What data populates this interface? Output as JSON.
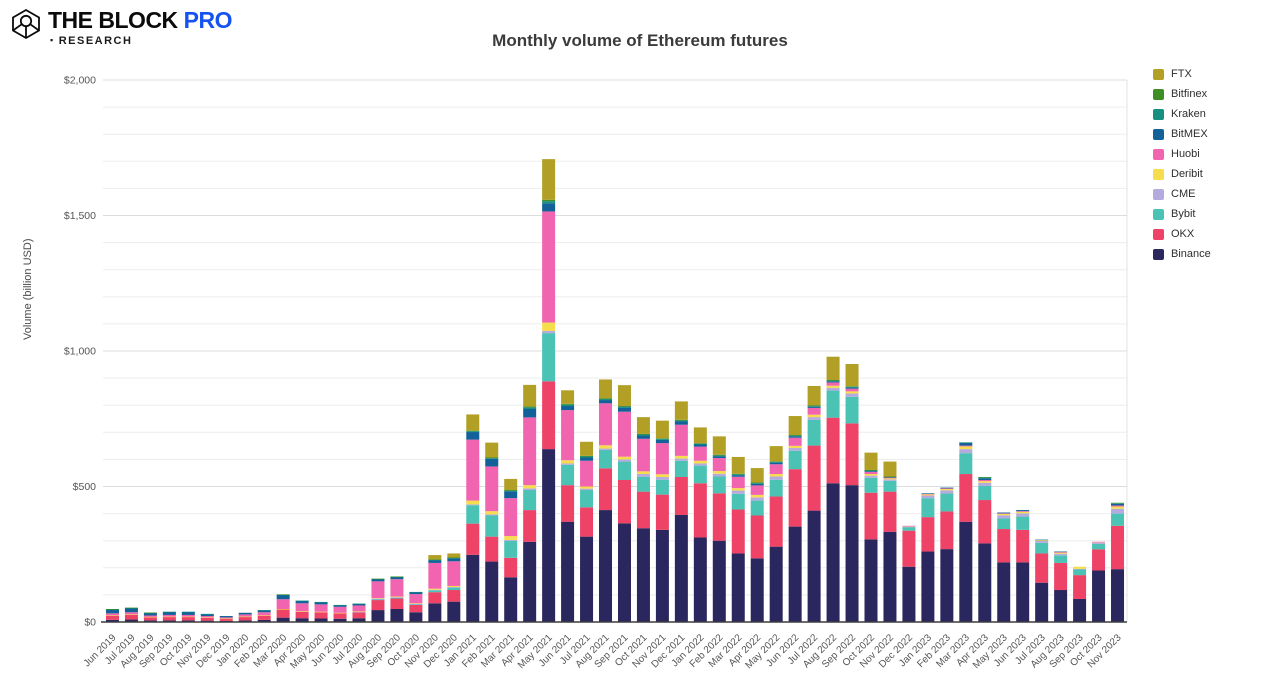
{
  "brand": {
    "name_part1": "THE BLOCK",
    "name_part2": "PRO",
    "research_bullet": "▪",
    "research": "RESEARCH"
  },
  "chart_data": {
    "type": "bar",
    "variant": "stacked",
    "title": "Monthly volume of Ethereum futures",
    "ylabel": "Volume (billion USD)",
    "ylim": [
      0,
      2000
    ],
    "grid_step": 100,
    "yticks": [
      {
        "value": 0,
        "label": "$0"
      },
      {
        "value": 500,
        "label": "$500"
      },
      {
        "value": 1000,
        "label": "$1,000"
      },
      {
        "value": 1500,
        "label": "$1,500"
      },
      {
        "value": 2000,
        "label": "$2,000"
      }
    ],
    "legend_position": "right",
    "legend_order_top_to_bottom": [
      "FTX",
      "Bitfinex",
      "Kraken",
      "BitMEX",
      "Huobi",
      "Deribit",
      "CME",
      "Bybit",
      "OKX",
      "Binance"
    ],
    "categories": [
      "Jun 2019",
      "Jul 2019",
      "Aug 2019",
      "Sep 2019",
      "Oct 2019",
      "Nov 2019",
      "Dec 2019",
      "Jan 2020",
      "Feb 2020",
      "Mar 2020",
      "Apr 2020",
      "May 2020",
      "Jun 2020",
      "Jul 2020",
      "Aug 2020",
      "Sep 2020",
      "Oct 2020",
      "Nov 2020",
      "Dec 2020",
      "Jan 2021",
      "Feb 2021",
      "Mar 2021",
      "Apr 2021",
      "May 2021",
      "Jun 2021",
      "Jul 2021",
      "Aug 2021",
      "Sep 2021",
      "Oct 2021",
      "Nov 2021",
      "Dec 2021",
      "Jan 2022",
      "Feb 2022",
      "Mar 2022",
      "Apr 2022",
      "May 2022",
      "Jun 2022",
      "Jul 2022",
      "Aug 2022",
      "Sep 2022",
      "Oct 2022",
      "Nov 2022",
      "Dec 2022",
      "Jan 2023",
      "Feb 2023",
      "Mar 2023",
      "Apr 2023",
      "May 2023",
      "Jun 2023",
      "Jul 2023",
      "Aug 2023",
      "Sep 2023",
      "Oct 2023",
      "Nov 2023"
    ],
    "series": [
      {
        "name": "Binance",
        "color": "#2a265e",
        "values": [
          8,
          9,
          6,
          6,
          6,
          5,
          4,
          6,
          8,
          16,
          14,
          13,
          12,
          14,
          44,
          48,
          36,
          69,
          75,
          248,
          223,
          165,
          296,
          638,
          370,
          315,
          413,
          364,
          346,
          340,
          395,
          312,
          300,
          253,
          235,
          278,
          352,
          411,
          512,
          505,
          305,
          333,
          204,
          260,
          269,
          370,
          290,
          220,
          220,
          145,
          118,
          85,
          190,
          195
        ]
      },
      {
        "name": "OKX",
        "color": "#ee4266",
        "values": [
          16,
          18,
          12,
          13,
          13,
          11,
          8,
          13,
          16,
          30,
          24,
          23,
          20,
          21,
          37,
          39,
          27,
          41,
          43,
          115,
          92,
          72,
          117,
          250,
          135,
          108,
          154,
          160,
          135,
          130,
          140,
          200,
          175,
          162,
          158,
          185,
          212,
          240,
          242,
          228,
          172,
          148,
          133,
          127,
          139,
          176,
          160,
          123,
          120,
          108,
          100,
          88,
          78,
          160
        ]
      },
      {
        "name": "Bybit",
        "color": "#4bc3b4",
        "values": [
          0,
          0,
          0,
          0,
          0,
          0,
          0,
          0,
          0,
          0,
          0,
          0,
          0,
          0,
          2,
          2,
          2,
          7,
          9,
          68,
          78,
          62,
          74,
          178,
          75,
          64,
          68,
          68,
          55,
          55,
          60,
          65,
          62,
          58,
          55,
          62,
          68,
          95,
          100,
          98,
          55,
          40,
          13,
          70,
          66,
          77,
          52,
          39,
          49,
          39,
          28,
          21,
          20,
          45
        ]
      },
      {
        "name": "CME",
        "color": "#b5aade",
        "values": [
          0,
          0,
          0,
          0,
          0,
          0,
          0,
          0,
          0,
          0,
          0,
          0,
          0,
          2,
          3,
          3,
          2,
          2,
          2,
          3,
          4,
          4,
          6,
          8,
          5,
          5,
          5,
          8,
          10,
          10,
          8,
          8,
          10,
          12,
          12,
          12,
          10,
          10,
          10,
          12,
          8,
          5,
          2,
          10,
          12,
          15,
          12,
          12,
          12,
          7,
          6,
          2,
          5,
          18
        ]
      },
      {
        "name": "Deribit",
        "color": "#f6dd4d",
        "values": [
          1,
          1,
          1,
          1,
          1,
          1,
          1,
          1,
          1,
          2,
          2,
          2,
          2,
          2,
          2,
          2,
          2,
          4,
          4,
          14,
          12,
          14,
          12,
          31,
          12,
          8,
          12,
          10,
          10,
          10,
          10,
          10,
          10,
          9,
          9,
          9,
          8,
          9,
          8,
          8,
          6,
          4,
          2,
          4,
          5,
          10,
          6,
          5,
          6,
          3,
          4,
          8,
          2,
          8
        ]
      },
      {
        "name": "Huobi",
        "color": "#f164b0",
        "values": [
          7,
          8,
          5,
          6,
          6,
          5,
          4,
          8,
          11,
          36,
          29,
          27,
          22,
          22,
          62,
          64,
          34,
          95,
          91,
          225,
          165,
          140,
          250,
          410,
          185,
          95,
          155,
          166,
          120,
          115,
          115,
          52,
          48,
          42,
          35,
          36,
          30,
          25,
          12,
          10,
          8,
          4,
          1,
          2,
          2,
          3,
          4,
          2,
          2,
          0,
          2,
          0,
          1,
          4
        ]
      },
      {
        "name": "BitMEX",
        "color": "#136199",
        "values": [
          14,
          15,
          9,
          11,
          11,
          7,
          5,
          6,
          7,
          16,
          9,
          8,
          6,
          6,
          8,
          8,
          7,
          9,
          10,
          28,
          28,
          25,
          31,
          30,
          15,
          12,
          12,
          15,
          12,
          12,
          12,
          8,
          7,
          6,
          6,
          6,
          5,
          4,
          4,
          4,
          3,
          1,
          0,
          2,
          3,
          10,
          6,
          3,
          4,
          2,
          2,
          0,
          0,
          6
        ]
      },
      {
        "name": "Kraken",
        "color": "#17907f",
        "values": [
          1,
          1,
          1,
          1,
          1,
          1,
          0,
          0,
          1,
          1,
          1,
          1,
          1,
          1,
          1,
          1,
          1,
          3,
          3,
          3,
          3,
          3,
          6,
          8,
          5,
          4,
          4,
          4,
          4,
          4,
          4,
          3,
          3,
          3,
          3,
          3,
          3,
          3,
          3,
          3,
          2,
          1,
          0,
          0,
          0,
          2,
          3,
          0,
          0,
          0,
          0,
          0,
          0,
          2
        ]
      },
      {
        "name": "Bitfinex",
        "color": "#3e8e25",
        "values": [
          1,
          1,
          1,
          0,
          0,
          0,
          0,
          0,
          0,
          1,
          0,
          0,
          0,
          0,
          1,
          1,
          0,
          1,
          1,
          2,
          2,
          2,
          3,
          5,
          3,
          2,
          2,
          2,
          2,
          2,
          2,
          2,
          2,
          2,
          2,
          2,
          2,
          2,
          2,
          2,
          2,
          1,
          0,
          0,
          0,
          0,
          2,
          0,
          0,
          0,
          0,
          0,
          0,
          2
        ]
      },
      {
        "name": "FTX",
        "color": "#b1a025",
        "values": [
          0,
          0,
          0,
          0,
          0,
          0,
          0,
          0,
          0,
          0,
          0,
          0,
          0,
          0,
          0,
          0,
          0,
          16,
          15,
          60,
          55,
          41,
          80,
          150,
          50,
          52,
          70,
          77,
          62,
          65,
          68,
          58,
          68,
          62,
          53,
          56,
          70,
          72,
          86,
          82,
          64,
          55,
          0,
          0,
          0,
          0,
          0,
          0,
          0,
          0,
          0,
          0,
          0,
          0
        ]
      }
    ],
    "colors": {
      "grid_minor": "#ededed",
      "grid_major": "#dcdcdc",
      "axis_line": "#3d3d3d",
      "tick_text": "#555555",
      "plot_right_border": "#e3e3e3"
    }
  }
}
